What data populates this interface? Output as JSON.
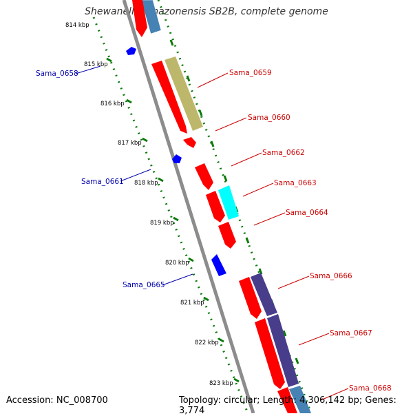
{
  "title": "Shewanella amazonensis SB2B, complete genome",
  "footer": {
    "accession_label": "Accession:",
    "accession": "NC_008700",
    "topology_label": "Topology:",
    "topology": "circular",
    "length_label": "Length:",
    "length": "4,306,142 bp",
    "genes_label": "Genes:",
    "genes": "3,774"
  },
  "colors": {
    "backbone": "#8c8c8c",
    "forward_cds": "#ff0000",
    "reverse_cds": "#0000ff",
    "ruler": "#0a7a0a",
    "forward_label": "#cc0000",
    "reverse_label": "#0000aa",
    "cog_tan": "#bdb76b",
    "cog_steel": "#4682b4",
    "cog_cyan": "#00ffff",
    "cog_purple": "#483d8b"
  },
  "ticks": [
    "814 kbp",
    "815 kbp",
    "816 kbp",
    "817 kbp",
    "818 kbp",
    "819 kbp",
    "820 kbp",
    "821 kbp",
    "822 kbp",
    "823 kbp"
  ],
  "genes": [
    {
      "name": "Sama_0658",
      "strand": "reverse"
    },
    {
      "name": "Sama_0659",
      "strand": "forward"
    },
    {
      "name": "Sama_0660",
      "strand": "forward"
    },
    {
      "name": "Sama_0661",
      "strand": "reverse"
    },
    {
      "name": "Sama_0662",
      "strand": "forward"
    },
    {
      "name": "Sama_0663",
      "strand": "forward"
    },
    {
      "name": "Sama_0664",
      "strand": "forward"
    },
    {
      "name": "Sama_0665",
      "strand": "reverse"
    },
    {
      "name": "Sama_0666",
      "strand": "forward"
    },
    {
      "name": "Sama_0667",
      "strand": "forward"
    },
    {
      "name": "Sama_0668",
      "strand": "forward"
    }
  ]
}
